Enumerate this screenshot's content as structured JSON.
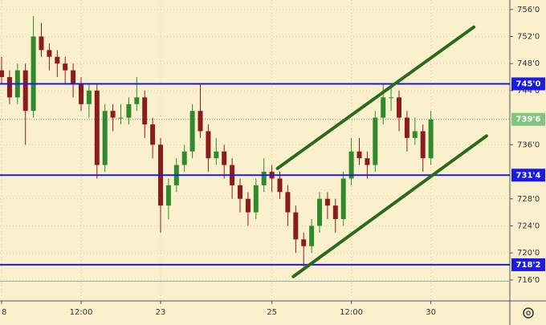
{
  "chart_data": {
    "type": "candlestick",
    "categories": [
      "8",
      null,
      null,
      null,
      null,
      null,
      null,
      null,
      null,
      null,
      "12:00",
      null,
      null,
      null,
      null,
      null,
      null,
      null,
      null,
      null,
      "23",
      null,
      null,
      null,
      null,
      null,
      null,
      null,
      null,
      null,
      null,
      null,
      null,
      null,
      "25",
      null,
      null,
      null,
      null,
      null,
      null,
      null,
      null,
      null,
      "12:00",
      null,
      null,
      null,
      null,
      null,
      null,
      null,
      null,
      null,
      "30"
    ],
    "open": [
      747,
      746,
      743,
      747,
      741,
      752,
      750,
      749,
      748,
      747,
      745,
      742,
      744,
      733,
      741,
      740,
      740,
      742,
      743,
      739,
      736,
      727,
      730,
      733,
      735,
      741,
      738,
      734,
      735,
      733,
      730,
      728,
      726,
      730,
      732,
      731,
      729,
      726,
      722,
      721,
      724,
      728,
      727,
      725,
      731,
      735,
      734,
      733,
      740,
      743,
      743,
      740,
      737,
      738,
      734
    ],
    "high": [
      749,
      747,
      748,
      748,
      755,
      754,
      751,
      750,
      749,
      748,
      746,
      745,
      745,
      742,
      742,
      742,
      743,
      746,
      744,
      740,
      737,
      731,
      734,
      736,
      742,
      745,
      739,
      737,
      736,
      734,
      731,
      729,
      731,
      734,
      733,
      732,
      730,
      727,
      723,
      725,
      729,
      729,
      728,
      732,
      737,
      737,
      735,
      741,
      745,
      745,
      744,
      741,
      740,
      739,
      741
    ],
    "low": [
      745,
      742,
      742,
      736,
      740,
      749,
      747,
      746,
      745,
      743,
      741,
      740,
      731,
      732,
      738,
      739,
      739,
      741,
      737,
      734,
      723,
      725,
      729,
      732,
      734,
      737,
      732,
      733,
      731,
      728,
      726,
      724,
      725,
      729,
      729,
      728,
      724,
      720,
      718,
      720,
      723,
      725,
      723,
      724,
      730,
      733,
      731,
      732,
      739,
      741,
      738,
      735,
      736,
      732,
      733
    ],
    "close": [
      746,
      743,
      747,
      741,
      752,
      750,
      749,
      748,
      747,
      745,
      742,
      744,
      733,
      741,
      740,
      740,
      742,
      743,
      739,
      736,
      727,
      730,
      733,
      735,
      741,
      738,
      734,
      735,
      733,
      730,
      728,
      726,
      730,
      732,
      731,
      729,
      726,
      722,
      721,
      724,
      728,
      727,
      725,
      731,
      735,
      734,
      733,
      740,
      743,
      743,
      740,
      737,
      738,
      734,
      739.75
    ],
    "up_color": "#2f8a2f",
    "down_color": "#8a1c1c",
    "ylim": [
      712.9,
      757.4
    ],
    "yticks": [
      {
        "value": 756,
        "label": "756'0"
      },
      {
        "value": 752,
        "label": "752'0"
      },
      {
        "value": 748,
        "label": "748'0"
      },
      {
        "value": 744,
        "label": "744'0"
      },
      {
        "value": 736,
        "label": "736'0"
      },
      {
        "value": 728,
        "label": "728'0"
      },
      {
        "value": 724,
        "label": "724'0"
      },
      {
        "value": 720,
        "label": "720'0"
      },
      {
        "value": 716,
        "label": "716'0"
      }
    ],
    "levels": [
      {
        "value": 745,
        "label": "745'0"
      },
      {
        "value": 731.5,
        "label": "731'4"
      },
      {
        "value": 718.25,
        "label": "718'2"
      }
    ],
    "level_color": "#1a1ae6",
    "last_price": {
      "value": 739.75,
      "label": "739'6"
    },
    "last_price_color": "#7fc47f",
    "base_level": 715.8,
    "base_level_color": "#7fb8a8",
    "trendlines": [
      {
        "x": [
          34.7,
          59.4
        ],
        "y": [
          732.5,
          753.4
        ]
      },
      {
        "x": [
          36.7,
          61
        ],
        "y": [
          716.5,
          737.3
        ]
      }
    ],
    "trendline_color": "#2b6a1e",
    "grid": true
  }
}
